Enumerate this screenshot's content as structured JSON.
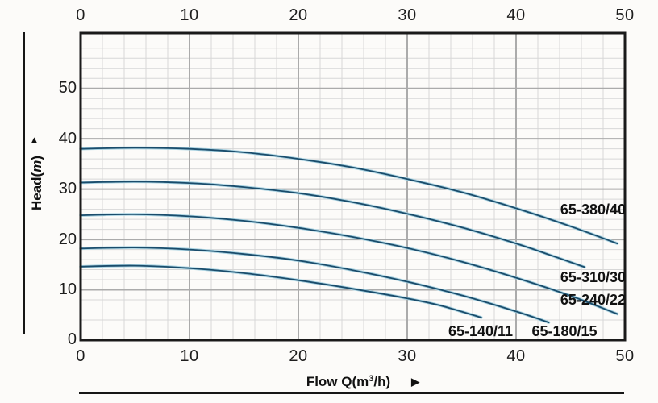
{
  "axes": {
    "x_top_ticks": [
      "0",
      "10",
      "20",
      "30",
      "40",
      "50"
    ],
    "x_bottom_ticks": [
      "0",
      "10",
      "20",
      "30",
      "40",
      "50"
    ],
    "y_ticks": [
      "50",
      "40",
      "30",
      "20",
      "10",
      "0"
    ],
    "x_label": {
      "prefix": "Flow Q(m",
      "sup": "3",
      "suffix": "/h)"
    },
    "y_label": {
      "prefix": "Head(",
      "unit": "m",
      "suffix": ")"
    },
    "up_arrow": "▲",
    "right_arrow": "▶"
  },
  "chart_data": {
    "type": "line",
    "title": "",
    "xlabel": "Flow Q(m³/h)",
    "ylabel": "Head(m)",
    "xlim": [
      0,
      50
    ],
    "ylim": [
      0,
      61
    ],
    "x_major_step": 10,
    "x_minor_step": 2,
    "y_major_step": 10,
    "y_minor_step": 2,
    "grid": true,
    "legend_position": "inline-labels",
    "colors": {
      "curve_core": "#1a4c6b",
      "curve_halo": "#a9d3e2",
      "grid_minor": "#d7d7d7",
      "grid_major": "#ababab",
      "frame": "#1a1a1a",
      "text": "#1e1e1e"
    },
    "series": [
      {
        "name": "65-380/40",
        "points": [
          [
            0,
            38.0
          ],
          [
            5,
            38.2
          ],
          [
            10,
            38.0
          ],
          [
            15,
            37.3
          ],
          [
            20,
            36.0
          ],
          [
            25,
            34.3
          ],
          [
            30,
            32.0
          ],
          [
            35,
            29.4
          ],
          [
            40,
            26.2
          ],
          [
            45,
            22.6
          ],
          [
            49.3,
            19.2
          ]
        ]
      },
      {
        "name": "65-310/30",
        "points": [
          [
            0,
            31.3
          ],
          [
            5,
            31.5
          ],
          [
            10,
            31.2
          ],
          [
            15,
            30.4
          ],
          [
            20,
            29.2
          ],
          [
            25,
            27.4
          ],
          [
            30,
            25.1
          ],
          [
            35,
            22.4
          ],
          [
            40,
            19.2
          ],
          [
            43,
            17.0
          ],
          [
            46.3,
            14.5
          ]
        ]
      },
      {
        "name": "65-240/22",
        "points": [
          [
            0,
            24.8
          ],
          [
            5,
            25.0
          ],
          [
            10,
            24.6
          ],
          [
            15,
            23.7
          ],
          [
            20,
            22.3
          ],
          [
            25,
            20.5
          ],
          [
            30,
            18.3
          ],
          [
            35,
            15.6
          ],
          [
            40,
            12.4
          ],
          [
            45,
            8.8
          ],
          [
            49.3,
            5.2
          ]
        ]
      },
      {
        "name": "65-180/15",
        "points": [
          [
            0,
            18.2
          ],
          [
            5,
            18.4
          ],
          [
            10,
            18.0
          ],
          [
            15,
            17.1
          ],
          [
            20,
            15.8
          ],
          [
            25,
            13.9
          ],
          [
            30,
            11.6
          ],
          [
            35,
            8.9
          ],
          [
            40,
            5.7
          ],
          [
            43,
            3.5
          ]
        ]
      },
      {
        "name": "65-140/11",
        "points": [
          [
            0,
            14.6
          ],
          [
            5,
            14.8
          ],
          [
            10,
            14.3
          ],
          [
            15,
            13.3
          ],
          [
            20,
            11.9
          ],
          [
            25,
            10.2
          ],
          [
            30,
            8.3
          ],
          [
            33,
            6.9
          ],
          [
            36.8,
            4.5
          ]
        ]
      }
    ]
  }
}
